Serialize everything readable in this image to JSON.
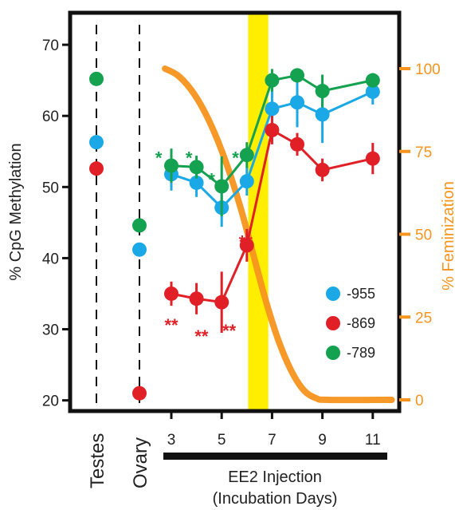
{
  "chart_data": {
    "type": "line",
    "colors": {
      "series_-955": "#1aa9e6",
      "series_-869": "#e02026",
      "series_-789": "#14a150",
      "feminization": "#f7941d",
      "injection_band": "#ffee00",
      "axis": "#111111"
    },
    "left_axis": {
      "label": "% CpG Methylation",
      "ylim": [
        18.5,
        74.5
      ],
      "ticks": [
        20,
        30,
        40,
        50,
        60,
        70
      ]
    },
    "right_axis": {
      "label": "% Feminization",
      "ticks": [
        0,
        25,
        50,
        75,
        100
      ]
    },
    "x_axis": {
      "tick_values": [
        3,
        5,
        7,
        9,
        11
      ],
      "tick_labels": [
        "3",
        "5",
        "7",
        "9",
        "11"
      ],
      "category_labels": [
        "Testes",
        "Ovary"
      ],
      "bracket_label_line1": "EE2 Injection",
      "bracket_label_line2": "(Incubation Days)"
    },
    "injection_band": {
      "from": 6.05,
      "to": 6.85
    },
    "legend": {
      "placement": "bottom-right",
      "entries": [
        {
          "name": "-955",
          "color": "#1aa9e6"
        },
        {
          "name": "-869",
          "color": "#e02026"
        },
        {
          "name": "-789",
          "color": "#14a150"
        }
      ]
    },
    "series": [
      {
        "name": "-955",
        "color": "#1aa9e6",
        "testes": 56.3,
        "ovary": 41.2,
        "points": [
          {
            "x": 3,
            "y": 51.8,
            "err": 2.3
          },
          {
            "x": 4,
            "y": 50.6,
            "err": 2.0
          },
          {
            "x": 5,
            "y": 47.1,
            "err": 2.7
          },
          {
            "x": 6,
            "y": 50.8,
            "err": 2.0
          },
          {
            "x": 7,
            "y": 61.0,
            "err": 4.5
          },
          {
            "x": 8,
            "y": 61.9,
            "err": 3.5
          },
          {
            "x": 9,
            "y": 60.2,
            "err": 4.0
          },
          {
            "x": 11,
            "y": 63.4,
            "err": 1.8
          }
        ]
      },
      {
        "name": "-869",
        "color": "#e02026",
        "testes": 52.6,
        "ovary": 21.0,
        "points": [
          {
            "x": 3,
            "y": 35.0,
            "err": 1.7
          },
          {
            "x": 4,
            "y": 34.3,
            "err": 2.2
          },
          {
            "x": 5,
            "y": 33.8,
            "err": 4.3
          },
          {
            "x": 6,
            "y": 41.8,
            "err": 2.3
          },
          {
            "x": 7,
            "y": 58.0,
            "err": 2.0
          },
          {
            "x": 8,
            "y": 56.0,
            "err": 1.6
          },
          {
            "x": 9,
            "y": 52.4,
            "err": 1.6
          },
          {
            "x": 11,
            "y": 54.0,
            "err": 2.2
          }
        ]
      },
      {
        "name": "-789",
        "color": "#14a150",
        "testes": 65.2,
        "ovary": 44.6,
        "points": [
          {
            "x": 3,
            "y": 53.0,
            "err": 2.4
          },
          {
            "x": 4,
            "y": 52.8,
            "err": 1.6
          },
          {
            "x": 5,
            "y": 50.1,
            "err": 4.2
          },
          {
            "x": 6,
            "y": 54.5,
            "err": 1.8
          },
          {
            "x": 7,
            "y": 65.0,
            "err": 1.6
          },
          {
            "x": 8,
            "y": 65.7,
            "err": 1.0
          },
          {
            "x": 9,
            "y": 63.5,
            "err": 2.3
          },
          {
            "x": 11,
            "y": 65.0,
            "err": 1.0
          }
        ]
      }
    ],
    "feminization": {
      "name": "% Feminization",
      "x": [
        2.75,
        3.25,
        3.75,
        4.25,
        4.75,
        5.25,
        5.75,
        6.25,
        6.75,
        7.25,
        7.75,
        8.25,
        8.75,
        9.25,
        11.75
      ],
      "y": [
        100,
        98,
        94,
        88,
        80,
        70,
        58,
        44,
        30,
        18,
        9,
        3,
        0.5,
        0,
        0
      ]
    },
    "annotations": [
      {
        "text": "*",
        "x": 2.5,
        "y": 54.8,
        "color": "#14a150"
      },
      {
        "text": "*",
        "x": 3.7,
        "y": 54.8,
        "color": "#14a150"
      },
      {
        "text": "*",
        "x": 4.6,
        "y": 51.8,
        "color": "#14a150"
      },
      {
        "text": "*",
        "x": 5.55,
        "y": 54.8,
        "color": "#14a150"
      },
      {
        "text": "**",
        "x": 5.95,
        "y": 43.0,
        "color": "#e02026"
      },
      {
        "text": "**",
        "x": 3.0,
        "y": 31.3,
        "color": "#e02026"
      },
      {
        "text": "**",
        "x": 4.2,
        "y": 29.7,
        "color": "#e02026"
      },
      {
        "text": "**",
        "x": 5.3,
        "y": 30.5,
        "color": "#e02026"
      }
    ]
  }
}
